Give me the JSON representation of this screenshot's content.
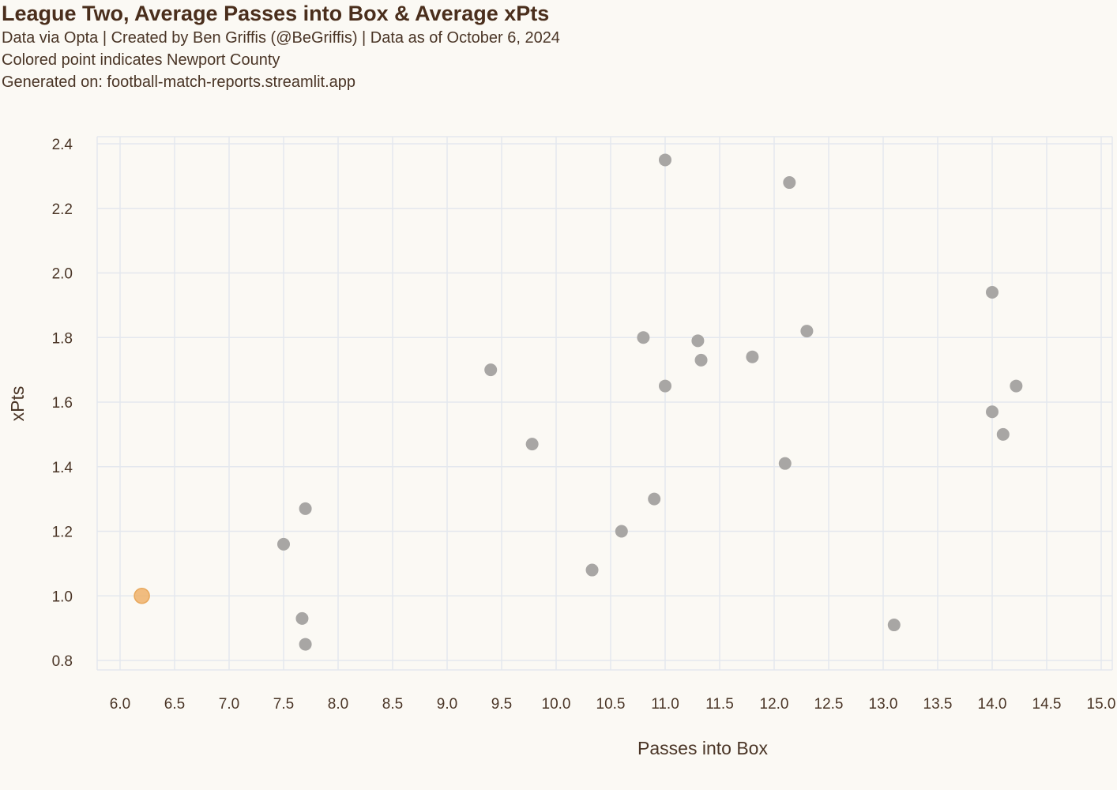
{
  "header": {
    "title": "League Two, Average Passes into Box & Average xPts",
    "subtitle_lines": [
      "Data via Opta | Created by Ben Griffis (@BeGriffis) | Data as of October 6, 2024",
      "Colored point indicates Newport County",
      "Generated on: football-match-reports.streamlit.app"
    ]
  },
  "colors": {
    "background": "#fbf9f4",
    "grid": "#e4e8ee",
    "point": "#a8a6a4",
    "highlight": "#eeb26a",
    "text": "#4a3526"
  },
  "chart_data": {
    "type": "scatter",
    "title": "League Two, Average Passes into Box & Average xPts",
    "xlabel": "Passes into Box",
    "ylabel": "xPts",
    "xlim": [
      6.0,
      15.0
    ],
    "ylim": [
      0.8,
      2.4
    ],
    "xticks": [
      6.0,
      6.5,
      7.0,
      7.5,
      8.0,
      8.5,
      9.0,
      9.5,
      10.0,
      10.5,
      11.0,
      11.5,
      12.0,
      12.5,
      13.0,
      13.5,
      14.0,
      14.5,
      15.0
    ],
    "yticks": [
      0.8,
      1.0,
      1.2,
      1.4,
      1.6,
      1.8,
      2.0,
      2.2,
      2.4
    ],
    "grid": true,
    "points": [
      {
        "x": 6.2,
        "y": 1.0,
        "highlight": true
      },
      {
        "x": 7.5,
        "y": 1.16
      },
      {
        "x": 7.7,
        "y": 1.27
      },
      {
        "x": 7.67,
        "y": 0.93
      },
      {
        "x": 7.7,
        "y": 0.85
      },
      {
        "x": 9.4,
        "y": 1.7
      },
      {
        "x": 9.78,
        "y": 1.47
      },
      {
        "x": 10.33,
        "y": 1.08
      },
      {
        "x": 10.6,
        "y": 1.2
      },
      {
        "x": 10.8,
        "y": 1.8
      },
      {
        "x": 10.9,
        "y": 1.3
      },
      {
        "x": 11.0,
        "y": 2.35
      },
      {
        "x": 11.0,
        "y": 1.65
      },
      {
        "x": 11.3,
        "y": 1.79
      },
      {
        "x": 11.33,
        "y": 1.73
      },
      {
        "x": 11.8,
        "y": 1.74
      },
      {
        "x": 12.1,
        "y": 1.41
      },
      {
        "x": 12.14,
        "y": 2.28
      },
      {
        "x": 12.3,
        "y": 1.82
      },
      {
        "x": 13.1,
        "y": 0.91
      },
      {
        "x": 14.0,
        "y": 1.94
      },
      {
        "x": 14.0,
        "y": 1.57
      },
      {
        "x": 14.1,
        "y": 1.5
      },
      {
        "x": 14.22,
        "y": 1.65
      }
    ]
  }
}
